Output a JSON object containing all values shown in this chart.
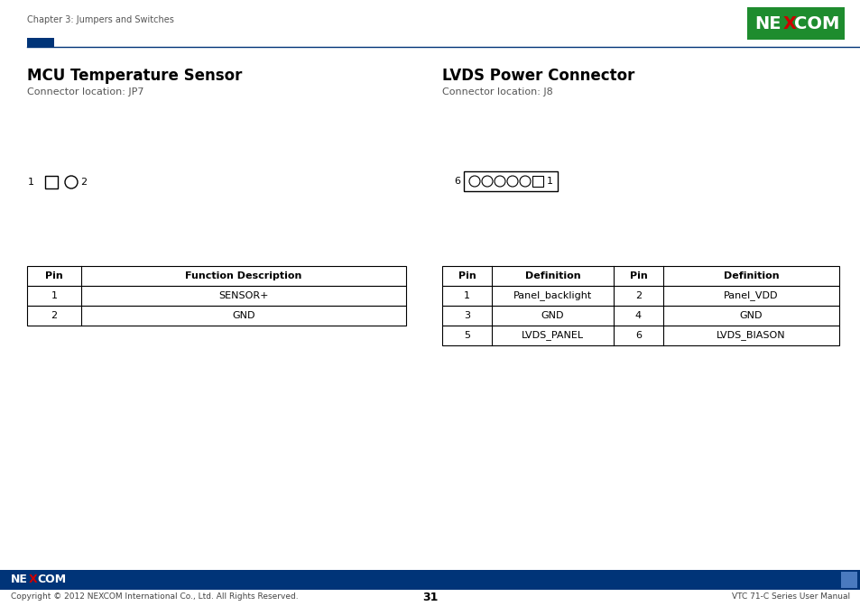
{
  "header_text": "Chapter 3: Jumpers and Switches",
  "left_title": "MCU Temperature Sensor",
  "left_subtitle": "Connector location: JP7",
  "right_title": "LVDS Power Connector",
  "right_subtitle": "Connector location: J8",
  "left_table_headers": [
    "Pin",
    "Function Description"
  ],
  "left_table_rows": [
    [
      "1",
      "SENSOR+"
    ],
    [
      "2",
      "GND"
    ]
  ],
  "right_table_headers": [
    "Pin",
    "Definition",
    "Pin",
    "Definition"
  ],
  "right_table_rows": [
    [
      "1",
      "Panel_backlight",
      "2",
      "Panel_VDD"
    ],
    [
      "3",
      "GND",
      "4",
      "GND"
    ],
    [
      "5",
      "LVDS_PANEL",
      "6",
      "LVDS_BIASON"
    ]
  ],
  "footer_text_left": "Copyright © 2012 NEXCOM International Co., Ltd. All Rights Reserved.",
  "footer_text_center": "31",
  "footer_text_right": "VTC 71-C Series User Manual",
  "bg_color": "#ffffff",
  "dark_blue": "#003478",
  "green_logo": "#1a8a2e"
}
